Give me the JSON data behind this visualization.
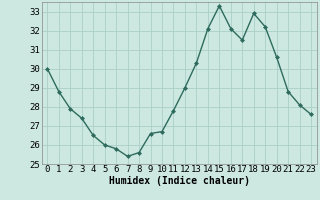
{
  "x": [
    0,
    1,
    2,
    3,
    4,
    5,
    6,
    7,
    8,
    9,
    10,
    11,
    12,
    13,
    14,
    15,
    16,
    17,
    18,
    19,
    20,
    21,
    22,
    23
  ],
  "y": [
    30.0,
    28.8,
    27.9,
    27.4,
    26.5,
    26.0,
    25.8,
    25.4,
    25.6,
    26.6,
    26.7,
    27.8,
    29.0,
    30.3,
    32.1,
    33.3,
    32.1,
    31.5,
    32.9,
    32.2,
    30.6,
    28.8,
    28.1,
    27.6
  ],
  "line_color": "#2e6b5e",
  "marker": "D",
  "markersize": 2.0,
  "linewidth": 1.0,
  "bg_color": "#cce8e0",
  "grid_color": "#aacfc8",
  "xlabel": "Humidex (Indice chaleur)",
  "xlabel_fontsize": 7,
  "tick_fontsize": 6.5,
  "ylim": [
    25,
    33.5
  ],
  "xlim": [
    -0.5,
    23.5
  ],
  "yticks": [
    25,
    26,
    27,
    28,
    29,
    30,
    31,
    32,
    33
  ],
  "xticks": [
    0,
    1,
    2,
    3,
    4,
    5,
    6,
    7,
    8,
    9,
    10,
    11,
    12,
    13,
    14,
    15,
    16,
    17,
    18,
    19,
    20,
    21,
    22,
    23
  ]
}
